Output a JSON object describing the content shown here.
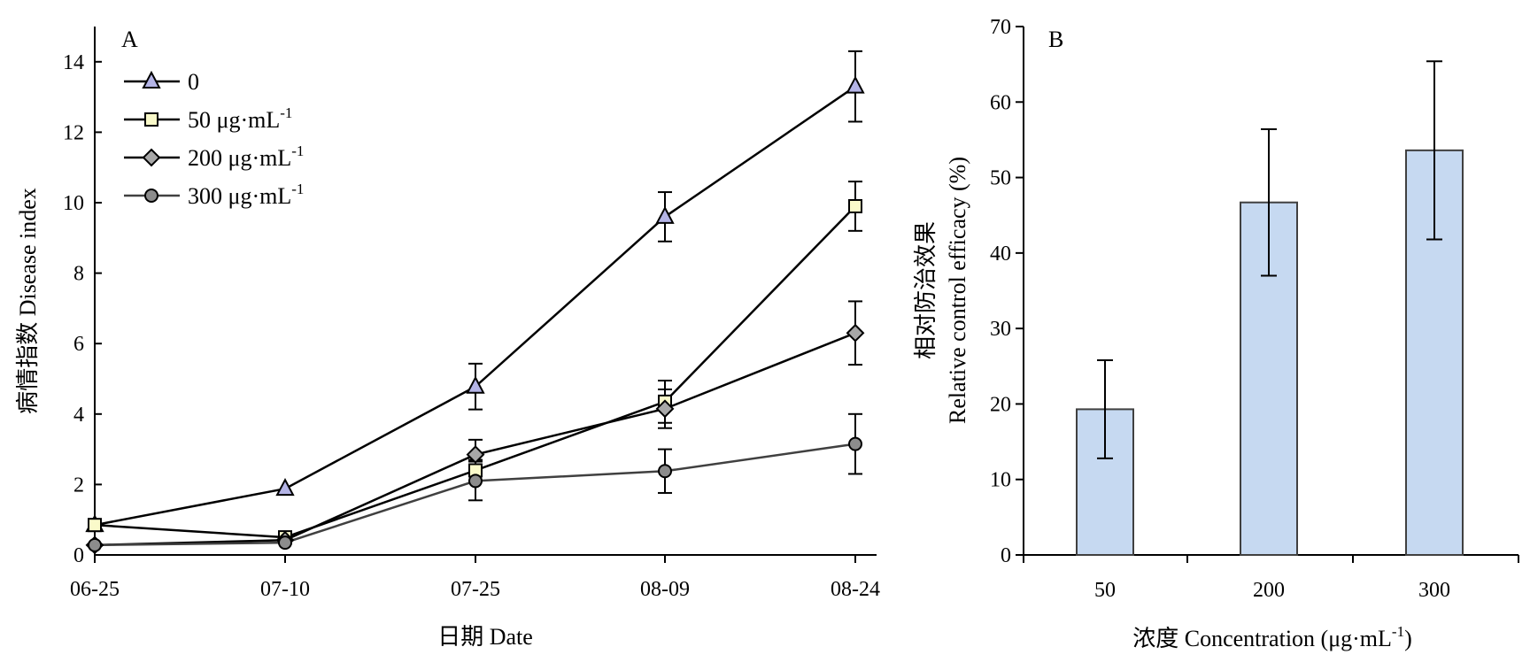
{
  "chart_data": [
    {
      "type": "line",
      "panel_label": "A",
      "xlabel": "日期 Date",
      "ylabel": "病情指数 Disease index",
      "x": [
        "06-25",
        "07-10",
        "07-25",
        "08-09",
        "08-24"
      ],
      "ylim": [
        0,
        15
      ],
      "yticks": [
        0,
        2,
        4,
        6,
        8,
        10,
        12,
        14
      ],
      "grid": false,
      "legend_position": "top-left",
      "series": [
        {
          "name": "0",
          "marker": "triangle",
          "marker_color": "#b4b4e6",
          "line_color": "#000000",
          "values": [
            0.85,
            1.88,
            4.78,
            9.6,
            13.3
          ],
          "errors": [
            0,
            0,
            0.65,
            0.7,
            1.0
          ]
        },
        {
          "name": "50 μg·mL",
          "name_sup": "-1",
          "marker": "square",
          "marker_color": "#fafaca",
          "line_color": "#000000",
          "values": [
            0.85,
            0.5,
            2.4,
            4.35,
            9.9
          ],
          "errors": [
            0,
            0,
            0.3,
            0.6,
            0.7
          ]
        },
        {
          "name": "200 μg·mL",
          "name_sup": "-1",
          "marker": "diamond",
          "marker_color": "#a8a8a8",
          "line_color": "#000000",
          "values": [
            0.28,
            0.42,
            2.85,
            4.15,
            6.3
          ],
          "errors": [
            0,
            0,
            0.42,
            0.55,
            0.9
          ]
        },
        {
          "name": "300 μg·mL",
          "name_sup": "-1",
          "marker": "circle",
          "marker_color": "#8c8c8c",
          "line_color": "#404040",
          "values": [
            0.28,
            0.35,
            2.1,
            2.38,
            3.15
          ],
          "errors": [
            0,
            0,
            0.55,
            0.62,
            0.85
          ]
        }
      ]
    },
    {
      "type": "bar",
      "panel_label": "B",
      "xlabel": "浓度 Concentration (μg·mL",
      "xlabel_sup": "-1",
      "xlabel_suffix": ")",
      "ylabel_line1": "相对防治效果",
      "ylabel_line2": "Relative control efficacy (%)",
      "categories": [
        "50",
        "200",
        "300"
      ],
      "values": [
        19.3,
        46.7,
        53.6
      ],
      "errors": [
        6.5,
        9.7,
        11.8
      ],
      "ylim": [
        0,
        70
      ],
      "yticks": [
        0,
        10,
        20,
        30,
        40,
        50,
        60,
        70
      ],
      "bar_color": "#c6d9f1",
      "grid": false
    }
  ]
}
